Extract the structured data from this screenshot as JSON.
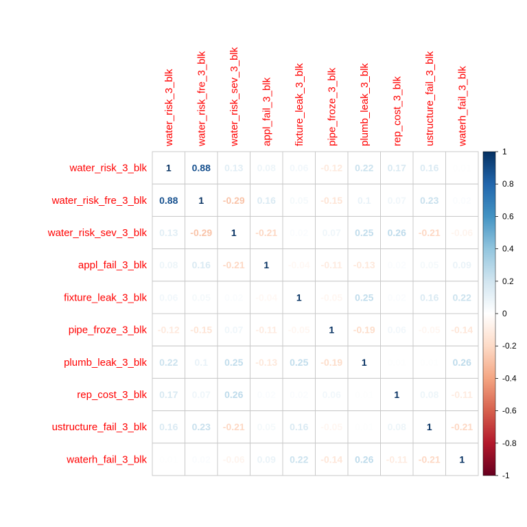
{
  "chart_data": {
    "type": "heatmap",
    "variables": [
      "water_risk_3_blk",
      "water_risk_fre_3_blk",
      "water_risk_sev_3_blk",
      "appl_fail_3_blk",
      "fixture_leak_3_blk",
      "pipe_froze_3_blk",
      "plumb_leak_3_blk",
      "rep_cost_3_blk",
      "ustructure_fail_3_blk",
      "waterh_fail_3_blk"
    ],
    "matrix": [
      [
        1,
        0.88,
        0.13,
        0.08,
        0.06,
        -0.12,
        0.22,
        0.17,
        0.16,
        0.01
      ],
      [
        0.88,
        1,
        -0.29,
        0.16,
        0.05,
        -0.15,
        0.1,
        0.07,
        0.23,
        0.02
      ],
      [
        0.13,
        -0.29,
        1,
        -0.21,
        0.02,
        0.07,
        0.25,
        0.26,
        -0.21,
        -0.06
      ],
      [
        0.08,
        0.16,
        -0.21,
        1,
        -0.04,
        -0.11,
        -0.13,
        0.02,
        0.05,
        0.09
      ],
      [
        0.06,
        0.05,
        0.02,
        -0.04,
        1,
        -0.05,
        0.25,
        0.02,
        0.16,
        0.22
      ],
      [
        -0.12,
        -0.15,
        0.07,
        -0.11,
        -0.05,
        1,
        -0.19,
        0.06,
        -0.05,
        -0.14
      ],
      [
        0.22,
        0.1,
        0.25,
        -0.13,
        0.25,
        -0.19,
        1,
        0.01,
        0.01,
        0.26
      ],
      [
        0.17,
        0.07,
        0.26,
        0.02,
        0.02,
        0.06,
        0.01,
        1,
        0.08,
        -0.11
      ],
      [
        0.16,
        0.23,
        -0.21,
        0.05,
        0.16,
        -0.05,
        0.01,
        0.08,
        1,
        -0.21
      ],
      [
        0.01,
        0.02,
        -0.06,
        0.09,
        0.22,
        -0.14,
        0.26,
        -0.11,
        -0.21,
        1
      ]
    ],
    "color_scale": {
      "min": -1,
      "max": 1,
      "ticks": [
        "1",
        "0.8",
        "0.6",
        "0.4",
        "0.2",
        "0",
        "-0.2",
        "-0.4",
        "-0.6",
        "-0.8",
        "-1"
      ],
      "colors": [
        "#67001f",
        "#b2182b",
        "#d6604d",
        "#f4a582",
        "#fddbc7",
        "#ffffff",
        "#d1e5f0",
        "#92c5de",
        "#4393c3",
        "#2166ac",
        "#053061"
      ]
    },
    "label_color": "#ff0000",
    "grid": true
  }
}
